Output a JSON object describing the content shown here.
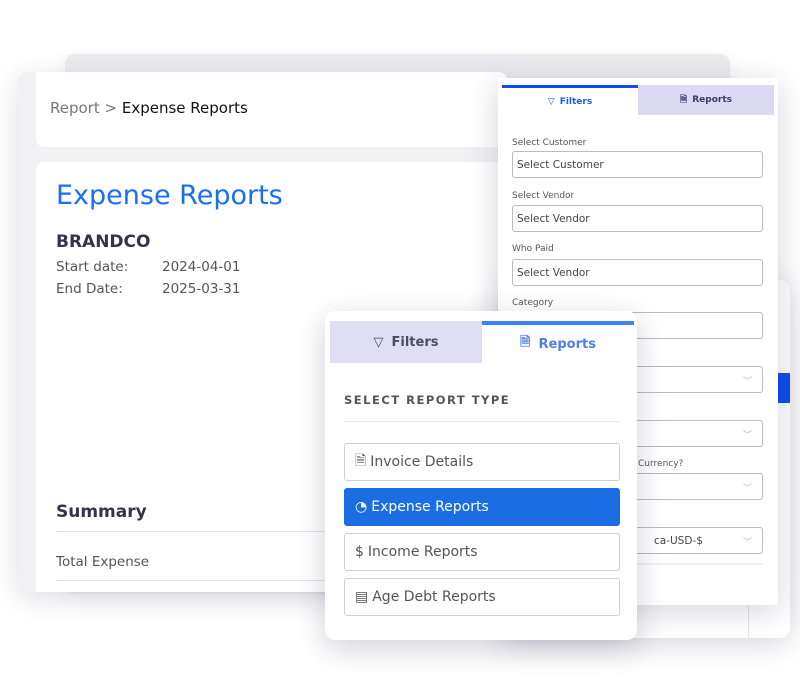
{
  "breadcrumb": {
    "parent": "Report",
    "separator": ">",
    "current": "Expense Reports"
  },
  "report": {
    "title": "Expense Reports",
    "company": "BRANDCO",
    "start_label": "Start date:",
    "start_value": "2024-04-01",
    "end_label": "End Date:",
    "end_value": "2025-03-31",
    "summary_title": "Summary",
    "total_label": "Total Expense"
  },
  "filters_panel": {
    "tabs": [
      {
        "label": "Filters",
        "icon": "filter-icon",
        "active": true
      },
      {
        "label": "Reports",
        "icon": "document-icon",
        "active": false
      }
    ],
    "fields": [
      {
        "label": "Select Customer",
        "value": "Select Customer"
      },
      {
        "label": "Select Vendor",
        "value": "Select Vendor"
      },
      {
        "label": "Who Paid",
        "value": "Select Vendor"
      },
      {
        "label": "Category",
        "value": ""
      },
      {
        "label": "",
        "value": ""
      },
      {
        "label": "",
        "value": ""
      },
      {
        "label": "Currency?",
        "value": ""
      },
      {
        "label": "",
        "value": "ca-USD-$"
      }
    ]
  },
  "reports_panel": {
    "tabs": [
      {
        "label": "Filters",
        "icon": "filter-icon",
        "active": false
      },
      {
        "label": "Reports",
        "icon": "document-icon",
        "active": true
      }
    ],
    "heading": "SELECT REPORT TYPE",
    "options": [
      {
        "label": "Invoice Details",
        "icon": "document-icon",
        "selected": false
      },
      {
        "label": "Expense Reports",
        "icon": "pie-chart-icon",
        "selected": true
      },
      {
        "label": "Income Reports",
        "icon": "dollar-icon",
        "selected": false
      },
      {
        "label": "Age Debt Reports",
        "icon": "table-icon",
        "selected": false
      }
    ]
  },
  "colors": {
    "accent": "#1b6de4",
    "title_blue": "#1a6ef0",
    "inactive_tab": "#e0def4"
  }
}
